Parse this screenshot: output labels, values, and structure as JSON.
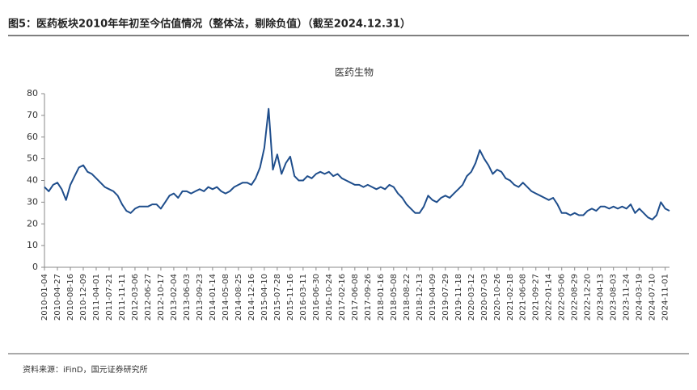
{
  "header": {
    "title": "图5：医药板块2010年年初至今估值情况（整体法，剔除负值）（截至2024.12.31）"
  },
  "chart_data": {
    "type": "line",
    "title": "医药生物",
    "categories": [
      "2010-01-04",
      null,
      null,
      "2010-04-27",
      null,
      null,
      "2010-08-16",
      null,
      null,
      "2010-12-09",
      null,
      null,
      "2011-04-01",
      null,
      null,
      "2011-07-21",
      null,
      null,
      "2011-11-11",
      null,
      null,
      "2012-03-06",
      null,
      null,
      "2012-06-27",
      null,
      null,
      "2012-10-17",
      null,
      null,
      "2013-02-04",
      null,
      null,
      "2013-06-03",
      null,
      null,
      "2013-09-23",
      null,
      null,
      "2014-01-14",
      null,
      null,
      "2014-05-08",
      null,
      null,
      "2014-08-25",
      null,
      null,
      "2014-12-16",
      null,
      null,
      "2015-04-10",
      null,
      null,
      "2015-07-28",
      null,
      null,
      "2015-11-16",
      null,
      null,
      "2016-03-11",
      null,
      null,
      "2016-06-30",
      null,
      null,
      "2016-10-24",
      null,
      null,
      "2017-02-16",
      null,
      null,
      "2017-06-08",
      null,
      null,
      "2017-09-26",
      null,
      null,
      "2018-01-16",
      null,
      null,
      "2018-05-08",
      null,
      null,
      "2018-08-22",
      null,
      null,
      "2018-12-13",
      null,
      null,
      "2019-04-09",
      null,
      null,
      "2019-07-29",
      null,
      null,
      "2019-11-18",
      null,
      null,
      "2020-03-12",
      null,
      null,
      "2020-07-03",
      null,
      null,
      "2020-10-26",
      null,
      null,
      "2021-02-18",
      null,
      null,
      "2021-06-08",
      null,
      null,
      "2021-09-27",
      null,
      null,
      "2022-01-14",
      null,
      null,
      "2022-05-06",
      null,
      null,
      "2022-08-29",
      null,
      null,
      "2022-12-20",
      null,
      null,
      "2023-04-13",
      null,
      null,
      "2023-08-03",
      null,
      null,
      "2023-11-24",
      null,
      null,
      "2024-03-19",
      null,
      null,
      "2024-07-10",
      null,
      null,
      "2024-11-01",
      null
    ],
    "series": [
      {
        "color": "#1f4e8c",
        "values": [
          37,
          35,
          38,
          39,
          36,
          31,
          38,
          42,
          46,
          47,
          44,
          43,
          41,
          39,
          37,
          36,
          35,
          33,
          29,
          26,
          25,
          27,
          28,
          28,
          28,
          29,
          29,
          27,
          30,
          33,
          34,
          32,
          35,
          35,
          34,
          35,
          36,
          35,
          37,
          36,
          37,
          35,
          34,
          35,
          37,
          38,
          39,
          39,
          38,
          41,
          46,
          55,
          73,
          45,
          52,
          43,
          48,
          51,
          42,
          40,
          40,
          42,
          41,
          43,
          44,
          43,
          44,
          42,
          43,
          41,
          40,
          39,
          38,
          38,
          37,
          38,
          37,
          36,
          37,
          36,
          38,
          37,
          34,
          32,
          29,
          27,
          25,
          25,
          28,
          33,
          31,
          30,
          32,
          33,
          32,
          34,
          36,
          38,
          42,
          44,
          48,
          54,
          50,
          47,
          43,
          45,
          44,
          41,
          40,
          38,
          37,
          39,
          37,
          35,
          34,
          33,
          32,
          31,
          32,
          29,
          25,
          25,
          24,
          25,
          24,
          24,
          26,
          27,
          26,
          28,
          28,
          27,
          28,
          27,
          28,
          27,
          29,
          25,
          27,
          25,
          23,
          22,
          24,
          30,
          27,
          26
        ]
      }
    ],
    "ylim": [
      0,
      80
    ],
    "yticks": [
      0,
      10,
      20,
      30,
      40,
      50,
      60,
      70,
      80
    ],
    "grid": false
  },
  "footer": {
    "source": "资料来源：iFinD，国元证券研究所"
  }
}
